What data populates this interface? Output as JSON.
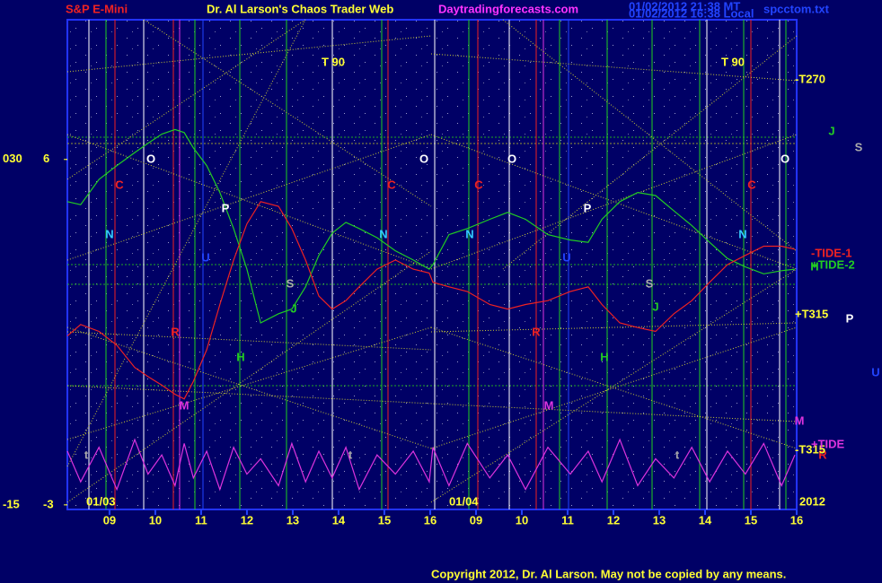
{
  "chart_data": {
    "type": "line",
    "header": {
      "left": "S&P E-Mini",
      "title": "Dr. Al Larson's Chaos Trader Web",
      "site": "Daytradingforecasts.com",
      "stamp1": "01/02/2012 21:38 MT",
      "stamp2": "01/02/2012 16:38 Local",
      "file": "spcctom.txt"
    },
    "copyright": "Copyright 2012, Dr. Al Larson. May not be copied by any means.",
    "date_labels": [
      "01/03",
      "01/04",
      "2012"
    ],
    "xlim": [
      0.08,
      16.0
    ],
    "xticks": [
      {
        "value": 1,
        "label": "09"
      },
      {
        "value": 2,
        "label": "10"
      },
      {
        "value": 3,
        "label": "11"
      },
      {
        "value": 4,
        "label": "12"
      },
      {
        "value": 5,
        "label": "13"
      },
      {
        "value": 6,
        "label": "14"
      },
      {
        "value": 7,
        "label": "15"
      },
      {
        "value": 8,
        "label": "16"
      },
      {
        "value": 9,
        "label": "09"
      },
      {
        "value": 10,
        "label": "10"
      },
      {
        "value": 11,
        "label": "11"
      },
      {
        "value": 12,
        "label": "12"
      },
      {
        "value": 13,
        "label": "13"
      },
      {
        "value": 14,
        "label": "14"
      },
      {
        "value": 15,
        "label": "15"
      },
      {
        "value": 16,
        "label": "16"
      }
    ],
    "ylim": [
      -15.6,
      48.2
    ],
    "yticks": [
      {
        "value": 30,
        "label": "030"
      },
      -15
    ],
    "y2lim": [
      -3.12,
      9.64
    ],
    "y2ticks": [
      6,
      -3
    ],
    "x": [
      0.08,
      0.37,
      0.77,
      1.16,
      1.55,
      1.84,
      2.14,
      2.43,
      2.63,
      2.83,
      3.12,
      3.41,
      3.71,
      4.0,
      4.3,
      4.69,
      4.98,
      5.28,
      5.57,
      5.86,
      6.16,
      6.45,
      6.84,
      7.24,
      7.63,
      7.98,
      8.06,
      8.41,
      8.81,
      9.3,
      9.69,
      10.08,
      10.57,
      11.06,
      11.45,
      11.75,
      12.14,
      12.53,
      12.92,
      13.32,
      13.71,
      14.1,
      14.49,
      14.88,
      15.28,
      15.67,
      15.96
    ],
    "series": [
      {
        "color": "#22cc22",
        "values": [
          24.5,
          24.1,
          27.4,
          29.2,
          30.9,
          32.1,
          33.3,
          33.9,
          33.5,
          31.5,
          29.2,
          25.7,
          21.0,
          15.7,
          8.7,
          9.9,
          10.5,
          13.4,
          17.5,
          20.4,
          21.8,
          21.0,
          19.8,
          18.1,
          16.9,
          15.7,
          16.3,
          20.2,
          21.0,
          22.2,
          23.1,
          22.2,
          20.2,
          19.5,
          19.2,
          22.2,
          24.5,
          25.7,
          25.3,
          23.3,
          21.4,
          19.2,
          17.1,
          16.0,
          15.1,
          15.5,
          15.7
        ]
      },
      {
        "color": "#ee2222",
        "values": [
          7.0,
          8.5,
          7.6,
          5.8,
          2.9,
          1.7,
          0.6,
          -0.6,
          -1.2,
          1.1,
          5.2,
          11.1,
          16.9,
          21.6,
          24.5,
          23.9,
          21.0,
          16.9,
          12.2,
          10.5,
          11.6,
          13.4,
          15.7,
          16.9,
          15.7,
          15.2,
          14.0,
          13.4,
          12.8,
          11.1,
          10.5,
          11.1,
          11.6,
          12.8,
          13.4,
          11.1,
          8.7,
          8.1,
          7.6,
          9.9,
          11.6,
          14.0,
          16.3,
          17.5,
          18.7,
          18.7,
          18.3
        ]
      },
      {
        "color": "#dd33dd",
        "axis": "y2",
        "values": [
          -1.6,
          -2.4,
          -1.5,
          -2.6,
          -1.3,
          -2.2,
          -1.7,
          -2.5,
          -1.4,
          -2.3,
          -1.6,
          -2.6,
          -1.5,
          -2.2,
          -1.8,
          -2.5,
          -1.4,
          -2.4,
          -1.6,
          -2.3,
          -1.5,
          -2.6,
          -1.7,
          -2.2,
          -1.6,
          -2.4,
          -1.5,
          -2.5,
          -1.4,
          -2.3,
          -1.7,
          -2.6,
          -1.5,
          -2.2,
          -1.6,
          -2.4,
          -1.3,
          -2.5,
          -1.8,
          -2.3,
          -1.5,
          -2.4,
          -1.6,
          -2.2,
          -1.4,
          -2.5,
          -1.7
        ]
      }
    ],
    "annotations": [
      {
        "text": "T  90",
        "color": "#ffff33"
      },
      {
        "text": "T  90",
        "color": "#ffff33"
      },
      {
        "text": "-T270",
        "color": "#ffff33"
      },
      {
        "text": "O",
        "color": "#ffffff"
      },
      {
        "text": "O",
        "color": "#ffffff"
      },
      {
        "text": "O",
        "color": "#ffffff"
      },
      {
        "text": "O",
        "color": "#ffffff"
      },
      {
        "text": "C",
        "color": "#ee2222"
      },
      {
        "text": "C",
        "color": "#ee2222"
      },
      {
        "text": "C",
        "color": "#ee2222"
      },
      {
        "text": "C",
        "color": "#ee2222"
      },
      {
        "text": "N",
        "color": "#33ccff"
      },
      {
        "text": "N",
        "color": "#33ccff"
      },
      {
        "text": "N",
        "color": "#33ccff"
      },
      {
        "text": "N",
        "color": "#33ccff"
      },
      {
        "text": "P",
        "color": "#ffffff"
      },
      {
        "text": "P",
        "color": "#ffffff"
      },
      {
        "text": "P",
        "color": "#ffffff"
      },
      {
        "text": "U",
        "color": "#2244ff"
      },
      {
        "text": "U",
        "color": "#2244ff"
      },
      {
        "text": "U",
        "color": "#2244ff"
      },
      {
        "text": "S",
        "color": "#aaaaaa"
      },
      {
        "text": "S",
        "color": "#aaaaaa"
      },
      {
        "text": "S",
        "color": "#aaaaaa"
      },
      {
        "text": "J",
        "color": "#22cc22"
      },
      {
        "text": "J",
        "color": "#22cc22"
      },
      {
        "text": "J",
        "color": "#22cc22"
      },
      {
        "text": "R",
        "color": "#ee2222"
      },
      {
        "text": "R",
        "color": "#ee2222"
      },
      {
        "text": "R",
        "color": "#ee2222"
      },
      {
        "text": "H",
        "color": "#22cc22"
      },
      {
        "text": "H",
        "color": "#22cc22"
      },
      {
        "text": "H",
        "color": "#22cc22"
      },
      {
        "text": "M",
        "color": "#dd33dd"
      },
      {
        "text": "M",
        "color": "#dd33dd"
      },
      {
        "text": "M",
        "color": "#dd33dd"
      },
      {
        "text": "t",
        "color": "#aaaaaa"
      },
      {
        "text": "t",
        "color": "#aaaaaa"
      },
      {
        "text": "t",
        "color": "#aaaaaa"
      },
      {
        "text": "-TIDE-1",
        "color": "#ee2222"
      },
      {
        "text": "+TIDE-2",
        "color": "#22cc22"
      },
      {
        "text": "+T315",
        "color": "#ffff33"
      },
      {
        "text": "-T315",
        "color": "#ffff33"
      },
      {
        "text": "+TIDE",
        "color": "#dd33dd"
      }
    ]
  }
}
